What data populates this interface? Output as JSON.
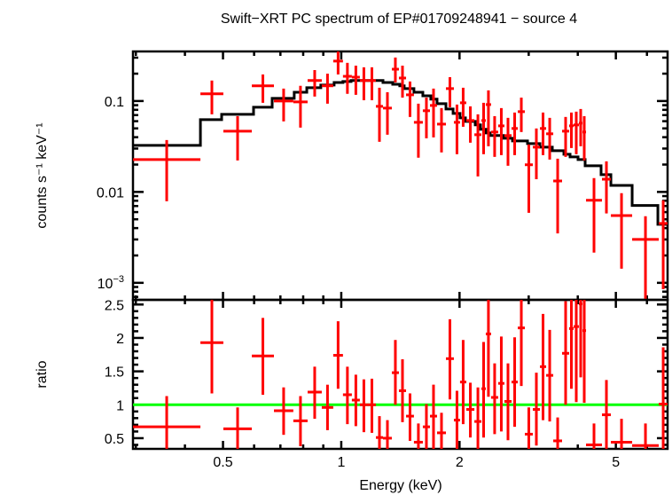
{
  "chart_data": [
    {
      "type": "scatter",
      "panel": "spectrum",
      "title": "Swift−XRT PC spectrum of EP#01709248941 − source 4",
      "xlabel": "Energy (keV)",
      "ylabel": "counts s⁻¹ keV⁻¹",
      "xscale": "log",
      "yscale": "log",
      "xlim": [
        0.295,
        6.77
      ],
      "ylim": [
        0.00065,
        0.351
      ],
      "x_ticks": [
        {
          "v": 0.5,
          "label": "0.5"
        },
        {
          "v": 1,
          "label": "1"
        },
        {
          "v": 2,
          "label": "2"
        },
        {
          "v": 5,
          "label": "5"
        }
      ],
      "y_ticks": [
        {
          "v": 0.1,
          "label": "0.1"
        },
        {
          "v": 0.01,
          "label": "0.01"
        },
        {
          "v": 0.001,
          "label": "10",
          "sup": "−3"
        }
      ],
      "data_color": "#ff0000",
      "model_color": "#000000",
      "energy_bin_edges": [
        0.295,
        0.438,
        0.501,
        0.592,
        0.674,
        0.755,
        0.821,
        0.892,
        0.954,
        1.01,
        1.064,
        1.115,
        1.169,
        1.225,
        1.277,
        1.345,
        1.402,
        1.462,
        1.531,
        1.613,
        1.682,
        1.753,
        1.847,
        1.935,
        2.006,
        2.081,
        2.182,
        2.274,
        2.333,
        2.406,
        2.509,
        2.602,
        2.713,
        2.814,
        2.933,
        3.073,
        3.204,
        3.323,
        3.464,
        3.648,
        3.803,
        3.903,
        4.027,
        4.111,
        4.198,
        4.609,
        4.856,
        5.501,
        6.43,
        6.772
      ],
      "rate": [
        [
          0.0227,
          0.0079,
          0.0372
        ],
        [
          0.12,
          0.0714,
          0.168
        ],
        [
          0.0466,
          0.0222,
          0.0682
        ],
        [
          0.147,
          0.0956,
          0.196
        ],
        [
          0.1,
          0.0597,
          0.137
        ],
        [
          0.0978,
          0.051,
          0.147
        ],
        [
          0.168,
          0.112,
          0.219
        ],
        [
          0.147,
          0.0935,
          0.2
        ],
        [
          0.275,
          0.196,
          0.36
        ],
        [
          0.187,
          0.12,
          0.263
        ],
        [
          0.183,
          0.117,
          0.245
        ],
        [
          0.168,
          0.102,
          0.235
        ],
        [
          0.168,
          0.102,
          0.235
        ],
        [
          0.0874,
          0.0356,
          0.14
        ],
        [
          0.0836,
          0.0426,
          0.125
        ],
        [
          0.224,
          0.16,
          0.301
        ],
        [
          0.179,
          0.109,
          0.245
        ],
        [
          0.117,
          0.0668,
          0.164
        ],
        [
          0.0583,
          0.0238,
          0.0935
        ],
        [
          0.0782,
          0.0389,
          0.109
        ],
        [
          0.0894,
          0.0398,
          0.137
        ],
        [
          0.0557,
          0.0272,
          0.0836
        ],
        [
          0.137,
          0.0855,
          0.183
        ],
        [
          0.0583,
          0.026,
          0.0914
        ],
        [
          0.0956,
          0.0521,
          0.14
        ],
        [
          0.061,
          0.0348,
          0.0874
        ],
        [
          0.0426,
          0.0148,
          0.0714
        ],
        [
          0.061,
          0.026,
          0.0956
        ],
        [
          0.0914,
          0.0318,
          0.131
        ],
        [
          0.0456,
          0.0243,
          0.0682
        ],
        [
          0.0533,
          0.0254,
          0.0836
        ],
        [
          0.0417,
          0.0194,
          0.0653
        ],
        [
          0.0499,
          0.0254,
          0.0747
        ],
        [
          0.0764,
          0.0456,
          0.109
        ],
        [
          0.0199,
          0.0059,
          0.0333
        ],
        [
          0.0311,
          0.0138,
          0.0499
        ],
        [
          0.0499,
          0.0254,
          0.0747
        ],
        [
          0.0436,
          0.0227,
          0.0653
        ],
        [
          0.0132,
          0.0035,
          0.0232
        ],
        [
          0.0466,
          0.0243,
          0.0668
        ],
        [
          0.0533,
          0.0304,
          0.0747
        ],
        [
          0.0546,
          0.026,
          0.0764
        ],
        [
          0.0571,
          0.0318,
          0.0817
        ],
        [
          0.0456,
          0.0222,
          0.0682
        ],
        [
          0.0081,
          0.00215,
          0.0142
        ],
        [
          0.0138,
          0.0058,
          0.0217
        ],
        [
          0.0055,
          0.00143,
          0.0097
        ],
        [
          0.003,
          0.0005,
          0.0054
        ],
        [
          0.0045,
          0.00085,
          0.0081
        ]
      ],
      "model_bin_edges": [
        0.295,
        0.438,
        0.496,
        0.598,
        0.667,
        0.759,
        0.817,
        0.887,
        0.959,
        1.01,
        1.059,
        1.277,
        1.352,
        1.409,
        1.446,
        1.531,
        1.613,
        1.69,
        1.753,
        1.847,
        1.926,
        2.006,
        2.07,
        2.193,
        2.262,
        2.333,
        2.394,
        2.589,
        2.728,
        2.979,
        3.204,
        3.445,
        3.687,
        3.823,
        4.006,
        4.176,
        4.585,
        4.856,
        5.501,
        6.396,
        6.772
      ],
      "model": [
        0.0325,
        0.0624,
        0.0714,
        0.0855,
        0.107,
        0.125,
        0.14,
        0.15,
        0.16,
        0.164,
        0.168,
        0.16,
        0.153,
        0.147,
        0.137,
        0.125,
        0.114,
        0.105,
        0.0935,
        0.0817,
        0.073,
        0.0653,
        0.0597,
        0.0546,
        0.0488,
        0.0446,
        0.0417,
        0.0389,
        0.0364,
        0.034,
        0.0311,
        0.0284,
        0.026,
        0.0243,
        0.0227,
        0.0194,
        0.0155,
        0.0118,
        0.0071,
        0.0044
      ]
    },
    {
      "type": "scatter",
      "panel": "ratio",
      "xlabel": "Energy (keV)",
      "ylabel": "ratio",
      "xscale": "log",
      "yscale": "linear",
      "xlim": [
        0.295,
        6.77
      ],
      "ylim": [
        0.34,
        2.57
      ],
      "x_ticks": [
        {
          "v": 0.5,
          "label": "0.5"
        },
        {
          "v": 1,
          "label": "1"
        },
        {
          "v": 2,
          "label": "2"
        },
        {
          "v": 5,
          "label": "5"
        }
      ],
      "y_ticks": [
        {
          "v": 0.5,
          "label": "0.5"
        },
        {
          "v": 1,
          "label": "1"
        },
        {
          "v": 1.5,
          "label": "1.5"
        },
        {
          "v": 2,
          "label": "2"
        },
        {
          "v": 2.5,
          "label": "2.5"
        }
      ],
      "reference_line": 1,
      "reference_color": "#00ff00",
      "data_color": "#ff0000",
      "ratio": [
        [
          0.67,
          0.2,
          1.13
        ],
        [
          1.93,
          1.17,
          2.6
        ],
        [
          0.64,
          0.2,
          0.96
        ],
        [
          1.73,
          1.15,
          2.3
        ],
        [
          0.91,
          0.55,
          1.26
        ],
        [
          0.76,
          0.38,
          1.13
        ],
        [
          1.19,
          0.79,
          1.57
        ],
        [
          0.96,
          0.62,
          1.3
        ],
        [
          1.74,
          1.24,
          2.25
        ],
        [
          1.15,
          0.71,
          1.57
        ],
        [
          1.07,
          0.68,
          1.45
        ],
        [
          1.0,
          0.59,
          1.38
        ],
        [
          1.0,
          0.58,
          1.39
        ],
        [
          0.51,
          0.2,
          0.83
        ],
        [
          0.5,
          0.2,
          0.77
        ],
        [
          1.48,
          1.0,
          1.97
        ],
        [
          1.21,
          0.74,
          1.68
        ],
        [
          0.83,
          0.46,
          1.17
        ],
        [
          0.44,
          0.2,
          0.72
        ],
        [
          0.67,
          0.2,
          1.01
        ],
        [
          0.83,
          0.3,
          1.3
        ],
        [
          0.58,
          0.2,
          0.88
        ],
        [
          1.69,
          1.08,
          2.28
        ],
        [
          0.77,
          0.34,
          1.21
        ],
        [
          1.34,
          0.71,
          1.97
        ],
        [
          0.93,
          0.51,
          1.33
        ],
        [
          0.75,
          0.2,
          1.26
        ],
        [
          1.24,
          0.51,
          1.94
        ],
        [
          2.06,
          1.12,
          2.6
        ],
        [
          1.11,
          0.56,
          1.62
        ],
        [
          1.32,
          0.6,
          2.02
        ],
        [
          1.05,
          0.47,
          1.62
        ],
        [
          1.34,
          0.67,
          2.01
        ],
        [
          2.15,
          1.28,
          2.6
        ],
        [
          0.56,
          0.2,
          0.96
        ],
        [
          0.93,
          0.39,
          1.48
        ],
        [
          1.57,
          0.77,
          2.36
        ],
        [
          1.44,
          0.75,
          2.12
        ],
        [
          0.46,
          0.2,
          0.81
        ],
        [
          1.77,
          1.0,
          2.55
        ],
        [
          2.14,
          1.24,
          2.6
        ],
        [
          2.17,
          1.04,
          2.6
        ],
        [
          2.51,
          1.41,
          2.6
        ],
        [
          2.11,
          1.03,
          2.6
        ],
        [
          0.4,
          0.2,
          0.72
        ],
        [
          0.85,
          0.34,
          1.37
        ],
        [
          0.44,
          0.2,
          0.79
        ],
        [
          0.39,
          0.2,
          0.72
        ],
        [
          1.01,
          0.2,
          1.86
        ]
      ]
    }
  ]
}
